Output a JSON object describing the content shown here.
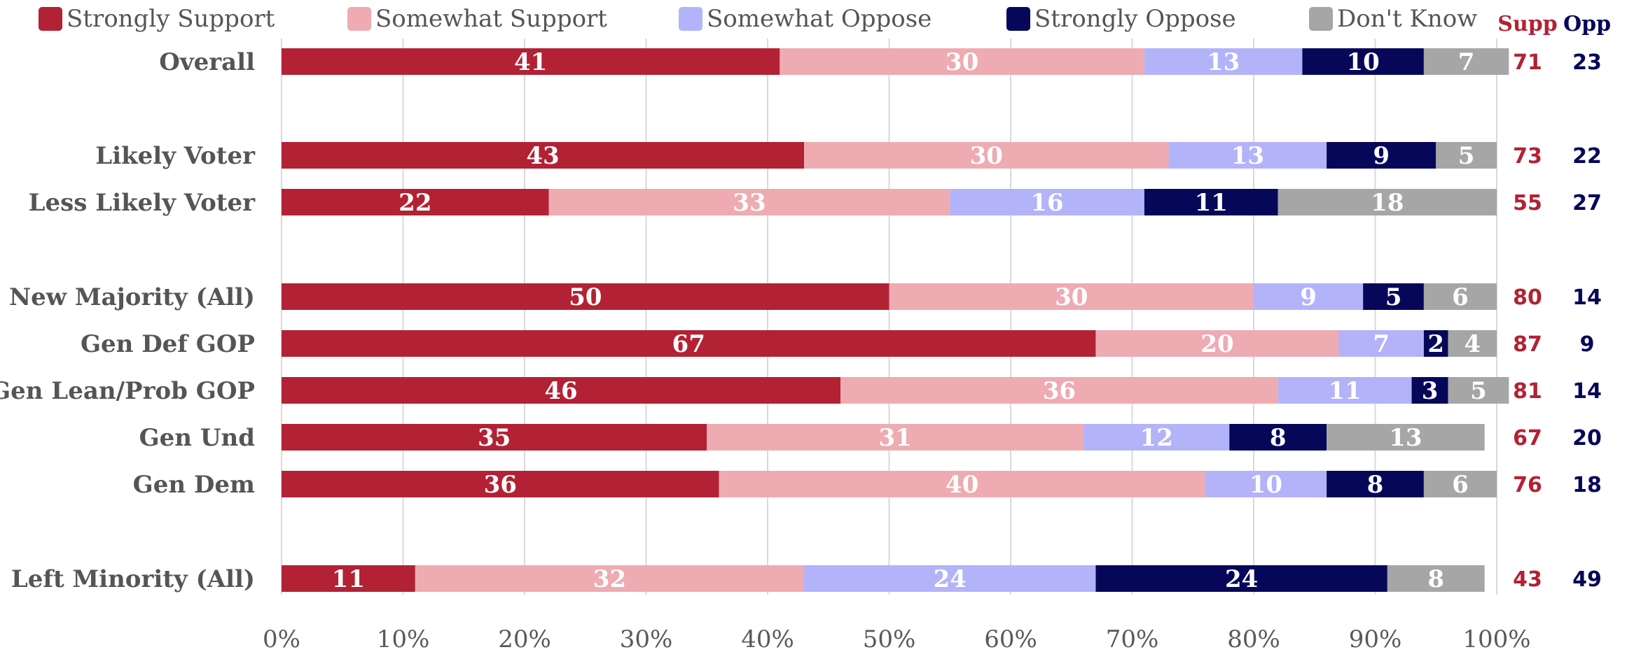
{
  "chart_data": {
    "type": "bar",
    "orientation": "horizontal",
    "stacked": true,
    "categories": [
      "Overall",
      "Likely Voter",
      "Less Likely Voter",
      "New Majority (All)",
      "Gen Def GOP",
      "Gen Lean/Prob GOP",
      "Gen Und",
      "Gen Dem",
      "Left Minority (All)"
    ],
    "series": [
      {
        "name": "Strongly Support",
        "color": "#b22234",
        "values": [
          41,
          43,
          22,
          50,
          67,
          46,
          35,
          36,
          11
        ]
      },
      {
        "name": "Somewhat Support",
        "color": "#eeabb2",
        "values": [
          30,
          30,
          33,
          30,
          20,
          36,
          31,
          40,
          32
        ]
      },
      {
        "name": "Somewhat Oppose",
        "color": "#b3b3fa",
        "values": [
          13,
          13,
          16,
          9,
          7,
          11,
          12,
          10,
          24
        ]
      },
      {
        "name": "Strongly Oppose",
        "color": "#07075a",
        "values": [
          10,
          9,
          11,
          5,
          2,
          3,
          8,
          8,
          24
        ]
      },
      {
        "name": "Don't Know",
        "color": "#a6a6a6",
        "values": [
          7,
          5,
          18,
          6,
          4,
          5,
          13,
          6,
          8
        ]
      }
    ],
    "totals": {
      "supp_header": "Supp",
      "opp_header": "Opp",
      "supp_color": "#b22234",
      "opp_color": "#07075a",
      "supp": [
        71,
        73,
        55,
        80,
        87,
        81,
        67,
        76,
        43
      ],
      "opp": [
        23,
        22,
        27,
        14,
        9,
        14,
        20,
        18,
        49
      ]
    },
    "x_ticks": [
      "0%",
      "10%",
      "20%",
      "30%",
      "40%",
      "50%",
      "60%",
      "70%",
      "80%",
      "90%",
      "100%"
    ],
    "xlim": [
      0,
      100
    ],
    "grid": true,
    "legend": "top"
  }
}
